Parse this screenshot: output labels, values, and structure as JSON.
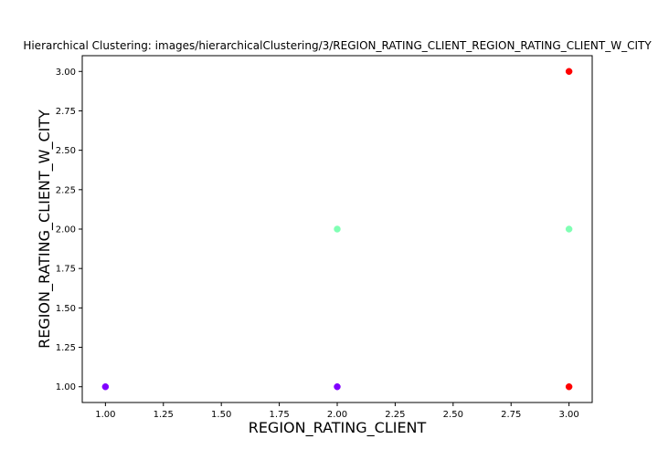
{
  "chart_data": {
    "type": "scatter",
    "title": "Hierarchical Clustering: images/hierarchicalClustering/3/REGION_RATING_CLIENT_REGION_RATING_CLIENT_W_CITY",
    "xlabel": "REGION_RATING_CLIENT",
    "ylabel": "REGION_RATING_CLIENT_W_CITY",
    "xlim": [
      0.9,
      3.1
    ],
    "ylim": [
      0.9,
      3.1
    ],
    "xticks": [
      "1.00",
      "1.25",
      "1.50",
      "1.75",
      "2.00",
      "2.25",
      "2.50",
      "2.75",
      "3.00"
    ],
    "yticks": [
      "1.00",
      "1.25",
      "1.50",
      "1.75",
      "2.00",
      "2.25",
      "2.50",
      "2.75",
      "3.00"
    ],
    "grid": false,
    "points": [
      {
        "x": 1,
        "y": 1,
        "color": "#8000ff"
      },
      {
        "x": 2,
        "y": 1,
        "color": "#8000ff"
      },
      {
        "x": 2,
        "y": 2,
        "color": "#80ffb4"
      },
      {
        "x": 3,
        "y": 2,
        "color": "#80ffb4"
      },
      {
        "x": 3,
        "y": 3,
        "color": "#ff0000"
      },
      {
        "x": 3,
        "y": 1,
        "color": "#ff0000"
      }
    ]
  }
}
